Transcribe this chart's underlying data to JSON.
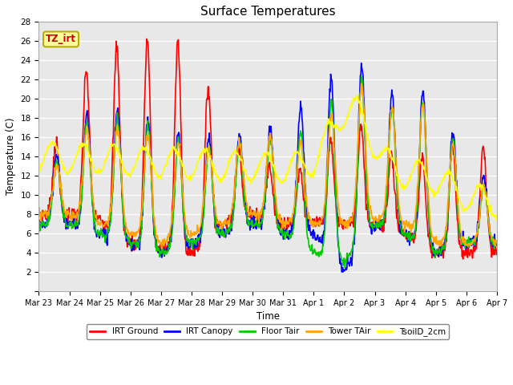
{
  "title": "Surface Temperatures",
  "xlabel": "Time",
  "ylabel": "Temperature (C)",
  "ylim": [
    0,
    28
  ],
  "yticks": [
    0,
    2,
    4,
    6,
    8,
    10,
    12,
    14,
    16,
    18,
    20,
    22,
    24,
    26,
    28
  ],
  "annotation_text": "TZ_irt",
  "annotation_bg": "#ffff99",
  "annotation_border": "#bbaa00",
  "plot_bg": "#e8e8e8",
  "legend": [
    "IRT Ground",
    "IRT Canopy",
    "Floor Tair",
    "Tower TAir",
    "TsoilD_2cm"
  ],
  "line_width": 1.2,
  "xtick_labels": [
    "Mar 23",
    "Mar 24",
    "Mar 25",
    "Mar 26",
    "Mar 27",
    "Mar 28",
    "Mar 29",
    "Mar 30",
    "Mar 31",
    "Apr 1",
    "Apr 2",
    "Apr 3",
    "Apr 4",
    "Apr 5",
    "Apr 6",
    "Apr 7"
  ],
  "n_points": 960,
  "n_days": 15
}
